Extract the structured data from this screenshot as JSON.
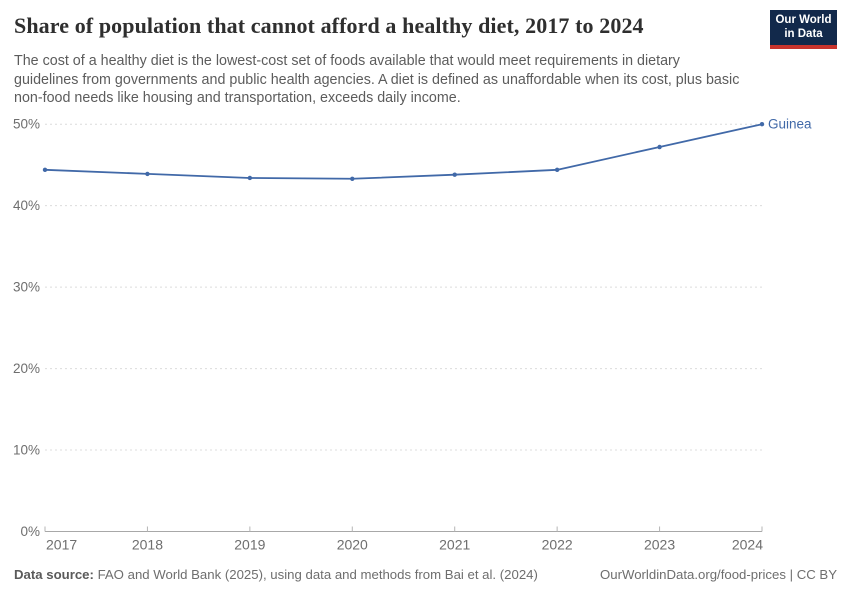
{
  "header": {
    "title": "Share of population that cannot afford a healthy diet, 2017 to 2024",
    "subtitle": "The cost of a healthy diet is the lowest-cost set of foods available that would meet requirements in dietary guidelines from governments and public health agencies. A diet is defined as unaffordable when its cost, plus basic non-food needs like housing and transportation, exceeds daily income.",
    "logo": {
      "line1": "Our World",
      "line2": "in Data"
    }
  },
  "chart_data": {
    "type": "line",
    "title": "Share of population that cannot afford a healthy diet, 2017 to 2024",
    "x": [
      "2017",
      "2018",
      "2019",
      "2020",
      "2021",
      "2022",
      "2023",
      "2024"
    ],
    "series": [
      {
        "name": "Guinea",
        "values": [
          44.4,
          43.9,
          43.4,
          43.3,
          43.8,
          44.4,
          47.2,
          50.0
        ],
        "color": "#4169a8"
      }
    ],
    "ylim": [
      0,
      50
    ],
    "yticks": [
      0,
      10,
      20,
      30,
      40,
      50
    ],
    "y_suffix": "%",
    "grid": "horizontal-dashed",
    "legend": "line-end-label"
  },
  "footer": {
    "datasource_label": "Data source:",
    "datasource_text": "FAO and World Bank (2025), using data and methods from Bai et al. (2024)",
    "attribution": "OurWorldinData.org/food-prices | CC BY"
  },
  "colors": {
    "line": "#4169a8",
    "gridline": "#dcdcdc",
    "axis": "#a8a8a8",
    "tick_label": "#6e6e6e",
    "logo_bg": "#12294b",
    "logo_red": "#c8342d"
  }
}
